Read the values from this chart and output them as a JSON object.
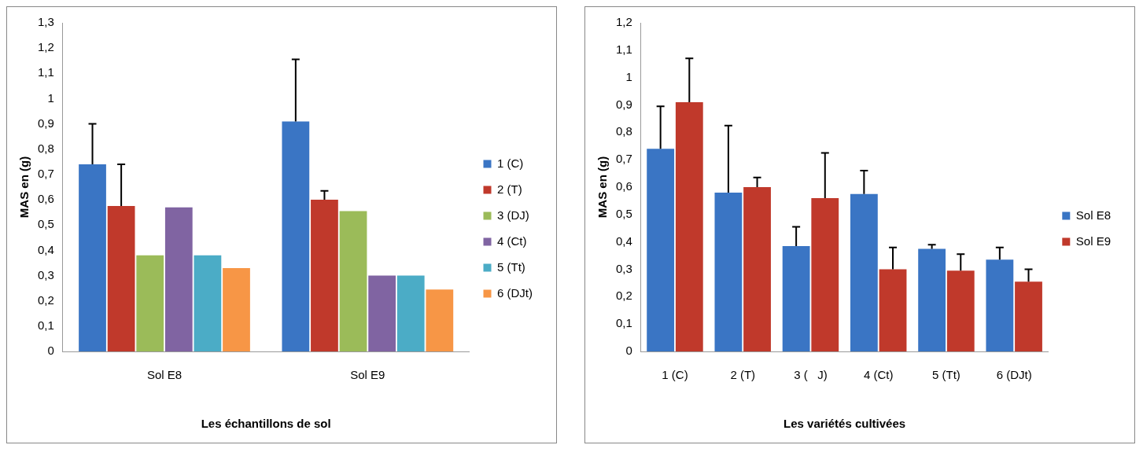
{
  "chart_data": [
    {
      "type": "bar",
      "xlabel": "Les échantillons de sol",
      "ylabel": "MAS en (g)",
      "categories": [
        "Sol E8",
        "Sol E9"
      ],
      "series": [
        {
          "name": "1 (C)",
          "color": "#3a75c4",
          "values": [
            0.74,
            0.91
          ],
          "errors": [
            [
              0.74,
              0.9
            ],
            [
              0.91,
              1.155
            ]
          ]
        },
        {
          "name": "2 (T)",
          "color": "#c0392b",
          "values": [
            0.575,
            0.6
          ],
          "errors": [
            [
              0.575,
              0.74
            ],
            [
              0.6,
              0.635
            ]
          ]
        },
        {
          "name": "3 (DJ)",
          "color": "#9bbb59",
          "values": [
            0.38,
            0.555
          ]
        },
        {
          "name": "4 (Ct)",
          "color": "#8064a2",
          "values": [
            0.57,
            0.3
          ]
        },
        {
          "name": "5 (Tt)",
          "color": "#4bacc6",
          "values": [
            0.38,
            0.3
          ]
        },
        {
          "name": "6 (DJt)",
          "color": "#f79646",
          "values": [
            0.33,
            0.245
          ]
        }
      ],
      "ylim": [
        0,
        1.3
      ],
      "yticks": [
        {
          "value": 0,
          "label": "0"
        },
        {
          "value": 0.1,
          "label": "0,1"
        },
        {
          "value": 0.2,
          "label": "0,2"
        },
        {
          "value": 0.3,
          "label": "0,3"
        },
        {
          "value": 0.4,
          "label": "0,4"
        },
        {
          "value": 0.5,
          "label": "0,5"
        },
        {
          "value": 0.6,
          "label": "0,6"
        },
        {
          "value": 0.7,
          "label": "0,7"
        },
        {
          "value": 0.8,
          "label": "0,8"
        },
        {
          "value": 0.9,
          "label": "0,9"
        },
        {
          "value": 1,
          "label": "1"
        },
        {
          "value": 1.1,
          "label": "1,1"
        },
        {
          "value": 1.2,
          "label": "1,2"
        },
        {
          "value": 1.3,
          "label": "1,3"
        }
      ],
      "legend": "right",
      "grid": false
    },
    {
      "type": "bar",
      "xlabel": "Les variétés cultivées",
      "ylabel": "MAS en (g)",
      "categories": [
        "1 (C)",
        "2 (T)",
        "3 (   J)",
        "4 (Ct)",
        "5 (Tt)",
        "6 (DJt)"
      ],
      "series": [
        {
          "name": "Sol E8",
          "color": "#3a75c4",
          "values": [
            0.74,
            0.58,
            0.385,
            0.575,
            0.375,
            0.335
          ],
          "errors": [
            [
              0.74,
              0.895
            ],
            [
              0.58,
              0.825
            ],
            [
              0.385,
              0.455
            ],
            [
              0.575,
              0.66
            ],
            [
              0.375,
              0.39
            ],
            [
              0.335,
              0.38
            ]
          ]
        },
        {
          "name": "Sol E9",
          "color": "#c0392b",
          "values": [
            0.91,
            0.6,
            0.56,
            0.3,
            0.295,
            0.255
          ],
          "errors": [
            [
              0.91,
              1.07
            ],
            [
              0.6,
              0.635
            ],
            [
              0.56,
              0.725
            ],
            [
              0.3,
              0.38
            ],
            [
              0.295,
              0.355
            ],
            [
              0.255,
              0.3
            ]
          ]
        }
      ],
      "ylim": [
        0,
        1.2
      ],
      "yticks": [
        {
          "value": 0,
          "label": "0"
        },
        {
          "value": 0.1,
          "label": "0,1"
        },
        {
          "value": 0.2,
          "label": "0,2"
        },
        {
          "value": 0.3,
          "label": "0,3"
        },
        {
          "value": 0.4,
          "label": "0,4"
        },
        {
          "value": 0.5,
          "label": "0,5"
        },
        {
          "value": 0.6,
          "label": "0,6"
        },
        {
          "value": 0.7,
          "label": "0,7"
        },
        {
          "value": 0.8,
          "label": "0,8"
        },
        {
          "value": 0.9,
          "label": "0,9"
        },
        {
          "value": 1,
          "label": "1"
        },
        {
          "value": 1.1,
          "label": "1,1"
        },
        {
          "value": 1.2,
          "label": "1,2"
        }
      ],
      "legend": "right",
      "grid": false
    }
  ]
}
